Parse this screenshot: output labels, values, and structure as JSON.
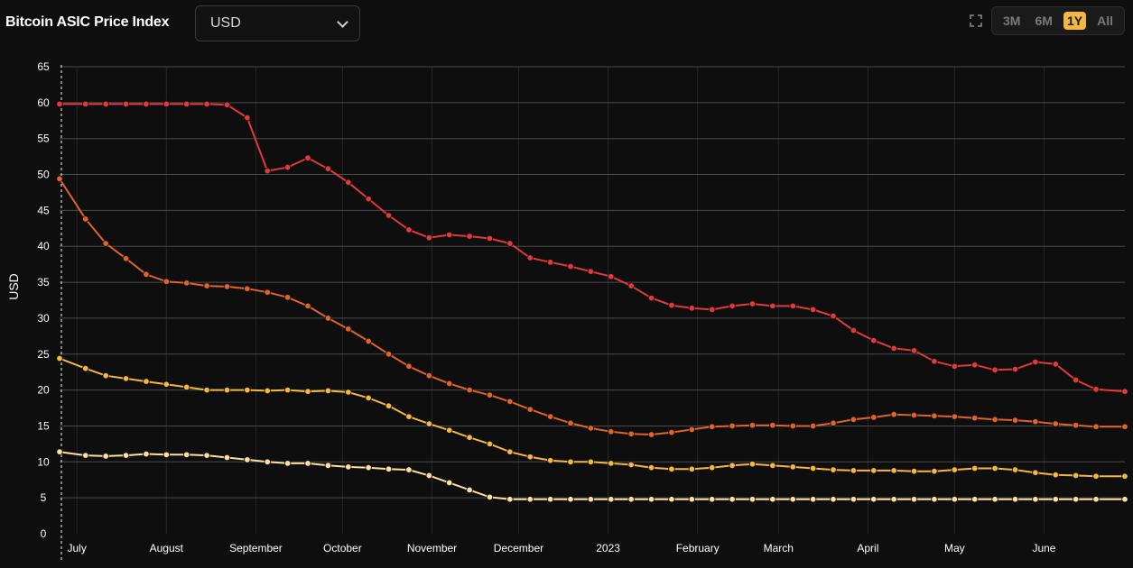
{
  "header": {
    "title": "Bitcoin ASIC Price Index",
    "currency": "USD",
    "ranges": [
      "3M",
      "6M",
      "1Y",
      "All"
    ],
    "active_range": "1Y"
  },
  "chart_data": {
    "type": "line",
    "ylabel": "USD",
    "ylim": [
      0,
      65
    ],
    "yticks": [
      0,
      5,
      10,
      15,
      20,
      25,
      30,
      35,
      40,
      45,
      50,
      55,
      60,
      65
    ],
    "xlim": [
      "2022-06-25",
      "2023-06-29"
    ],
    "xticks": [
      {
        "date": "2022-07-01",
        "label": "July"
      },
      {
        "date": "2022-08-01",
        "label": "August"
      },
      {
        "date": "2022-09-01",
        "label": "September"
      },
      {
        "date": "2022-10-01",
        "label": "October"
      },
      {
        "date": "2022-11-01",
        "label": "November"
      },
      {
        "date": "2022-12-01",
        "label": "December"
      },
      {
        "date": "2023-01-01",
        "label": "2023"
      },
      {
        "date": "2023-02-01",
        "label": "February"
      },
      {
        "date": "2023-03-01",
        "label": "March"
      },
      {
        "date": "2023-04-01",
        "label": "April"
      },
      {
        "date": "2023-05-01",
        "label": "May"
      },
      {
        "date": "2023-06-01",
        "label": "June"
      }
    ],
    "x": [
      "2022-06-25",
      "2022-07-04",
      "2022-07-11",
      "2022-07-18",
      "2022-07-25",
      "2022-08-01",
      "2022-08-08",
      "2022-08-15",
      "2022-08-22",
      "2022-08-29",
      "2022-09-05",
      "2022-09-12",
      "2022-09-19",
      "2022-09-26",
      "2022-10-03",
      "2022-10-10",
      "2022-10-17",
      "2022-10-24",
      "2022-10-31",
      "2022-11-07",
      "2022-11-14",
      "2022-11-21",
      "2022-11-28",
      "2022-12-05",
      "2022-12-12",
      "2022-12-19",
      "2022-12-26",
      "2023-01-02",
      "2023-01-09",
      "2023-01-16",
      "2023-01-23",
      "2023-01-30",
      "2023-02-06",
      "2023-02-13",
      "2023-02-20",
      "2023-02-27",
      "2023-03-06",
      "2023-03-13",
      "2023-03-20",
      "2023-03-27",
      "2023-04-03",
      "2023-04-10",
      "2023-04-17",
      "2023-04-24",
      "2023-05-01",
      "2023-05-08",
      "2023-05-15",
      "2023-05-22",
      "2023-05-29",
      "2023-06-05",
      "2023-06-12",
      "2023-06-19",
      "2023-06-29"
    ],
    "grid": true,
    "legend": "none",
    "series": [
      {
        "color": "#e03a3a",
        "values": [
          59.8,
          59.8,
          59.8,
          59.8,
          59.8,
          59.8,
          59.8,
          59.8,
          59.7,
          57.9,
          50.5,
          51.0,
          52.3,
          50.8,
          48.9,
          46.6,
          44.3,
          42.3,
          41.2,
          41.6,
          41.4,
          41.1,
          40.4,
          38.4,
          37.8,
          37.2,
          36.5,
          35.8,
          34.5,
          32.8,
          31.8,
          31.4,
          31.2,
          31.7,
          32.0,
          31.7,
          31.7,
          31.2,
          30.3,
          28.3,
          26.9,
          25.8,
          25.5,
          24.0,
          23.3,
          23.5,
          22.8,
          22.9,
          23.9,
          23.6,
          21.4,
          20.1,
          19.8
        ]
      },
      {
        "color": "#e0632a",
        "values": [
          49.4,
          43.8,
          40.4,
          38.3,
          36.1,
          35.1,
          34.9,
          34.5,
          34.4,
          34.1,
          33.6,
          32.9,
          31.7,
          30.0,
          28.5,
          26.8,
          25.0,
          23.3,
          22.0,
          20.9,
          20.0,
          19.3,
          18.4,
          17.3,
          16.3,
          15.4,
          14.7,
          14.2,
          13.9,
          13.8,
          14.1,
          14.5,
          14.9,
          15.0,
          15.1,
          15.1,
          15.0,
          15.0,
          15.4,
          15.9,
          16.2,
          16.6,
          16.5,
          16.4,
          16.3,
          16.1,
          15.9,
          15.8,
          15.6,
          15.3,
          15.1,
          14.9,
          14.9
        ]
      },
      {
        "color": "#f4b740",
        "values": [
          24.4,
          23.0,
          22.0,
          21.6,
          21.2,
          20.8,
          20.4,
          20.0,
          20.0,
          20.0,
          19.9,
          20.0,
          19.8,
          19.9,
          19.7,
          18.9,
          17.8,
          16.3,
          15.3,
          14.4,
          13.4,
          12.5,
          11.4,
          10.7,
          10.2,
          10.0,
          10.0,
          9.8,
          9.6,
          9.2,
          9.0,
          9.0,
          9.2,
          9.5,
          9.7,
          9.5,
          9.3,
          9.1,
          8.9,
          8.8,
          8.8,
          8.8,
          8.7,
          8.7,
          8.9,
          9.1,
          9.1,
          8.9,
          8.5,
          8.2,
          8.1,
          8.0,
          8.0
        ]
      },
      {
        "color": "#fde0a0",
        "values": [
          11.4,
          10.9,
          10.8,
          10.9,
          11.1,
          11.0,
          11.0,
          10.9,
          10.6,
          10.3,
          10.0,
          9.8,
          9.8,
          9.5,
          9.3,
          9.2,
          9.0,
          8.9,
          8.1,
          7.1,
          6.1,
          5.1,
          4.8,
          4.8,
          4.8,
          4.8,
          4.8,
          4.8,
          4.8,
          4.8,
          4.8,
          4.8,
          4.8,
          4.8,
          4.8,
          4.8,
          4.8,
          4.8,
          4.8,
          4.8,
          4.8,
          4.8,
          4.8,
          4.8,
          4.8,
          4.8,
          4.8,
          4.8,
          4.8,
          4.8,
          4.8,
          4.8,
          4.8
        ]
      }
    ]
  }
}
